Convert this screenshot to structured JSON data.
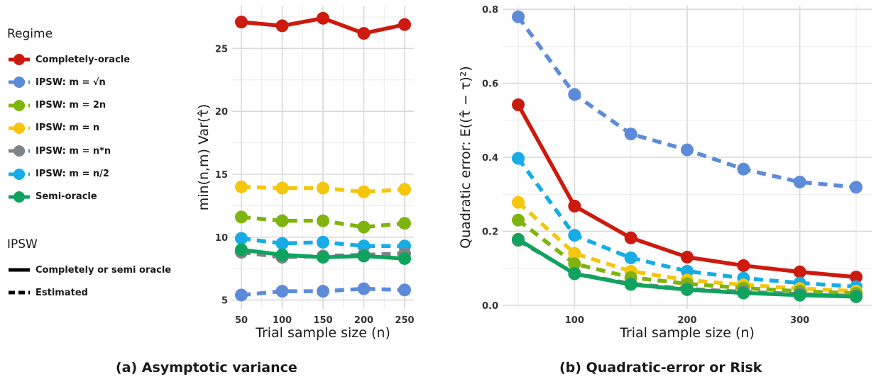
{
  "legend": {
    "regime_title": "Regime",
    "regime_items": [
      {
        "label": "Completely-oracle",
        "color": "#CC1A0E",
        "dash": "solid"
      },
      {
        "label": "IPSW: m = √n",
        "color": "#5E8BD9",
        "dash": "dashed"
      },
      {
        "label": "IPSW: m = 2n",
        "color": "#7FB40F",
        "dash": "dashed"
      },
      {
        "label": "IPSW: m = n",
        "color": "#F5C60C",
        "dash": "dashed"
      },
      {
        "label": "IPSW: m = n*n",
        "color": "#7E8389",
        "dash": "dashed"
      },
      {
        "label": "IPSW: m = n/2",
        "color": "#16ACE5",
        "dash": "dashed"
      },
      {
        "label": "Semi-oracle",
        "color": "#0FA35E",
        "dash": "solid"
      }
    ],
    "ipsw_title": "IPSW",
    "ipsw_items": [
      {
        "label": "Completely or semi oracle",
        "dash": "solid"
      },
      {
        "label": "Estimated",
        "dash": "dashed"
      }
    ]
  },
  "captions": {
    "a": "(a) Asymptotic variance",
    "b": "(b) Quadratic-error or Risk"
  },
  "chart_data": [
    {
      "type": "line",
      "title": "",
      "xlabel": "Trial sample size (n)",
      "ylabel": "min(n,m) Var(τ̂)",
      "x": [
        50,
        100,
        150,
        200,
        250
      ],
      "xticks": [
        50,
        100,
        150,
        200,
        250
      ],
      "yticks": [
        5,
        10,
        15,
        20,
        25
      ],
      "xlim": [
        50,
        250
      ],
      "ylim": [
        4.3,
        28.4
      ],
      "grid": true,
      "series": [
        {
          "name": "Completely-oracle",
          "values": [
            27.1,
            26.8,
            27.4,
            26.2,
            26.9
          ]
        },
        {
          "name": "IPSW: m = √n",
          "values": [
            5.4,
            5.7,
            5.7,
            5.9,
            5.8
          ]
        },
        {
          "name": "IPSW: m = 2n",
          "values": [
            11.6,
            11.3,
            11.3,
            10.8,
            11.1
          ]
        },
        {
          "name": "IPSW: m = n",
          "values": [
            14.0,
            13.9,
            13.9,
            13.6,
            13.8
          ]
        },
        {
          "name": "IPSW: m = n*n",
          "values": [
            8.8,
            8.4,
            8.5,
            8.6,
            8.7
          ]
        },
        {
          "name": "IPSW: m = n/2",
          "values": [
            9.9,
            9.5,
            9.6,
            9.3,
            9.3
          ]
        },
        {
          "name": "Semi-oracle",
          "values": [
            9.0,
            8.6,
            8.4,
            8.5,
            8.3
          ]
        }
      ]
    },
    {
      "type": "line",
      "title": "",
      "xlabel": "Trial sample size (n)",
      "ylabel": "Quadratic error:  E((τ̂ − τ)²)",
      "x": [
        50,
        100,
        150,
        200,
        250,
        300,
        350
      ],
      "xticks": [
        100,
        200,
        300
      ],
      "yticks": [
        0.0,
        0.2,
        0.4,
        0.6,
        0.8
      ],
      "xlim": [
        50,
        350
      ],
      "ylim": [
        -0.01,
        0.81
      ],
      "grid": true,
      "series": [
        {
          "name": "Completely-oracle",
          "values": [
            0.542,
            0.268,
            0.182,
            0.13,
            0.107,
            0.09,
            0.076
          ]
        },
        {
          "name": "IPSW: m = √n",
          "values": [
            0.78,
            0.57,
            0.463,
            0.42,
            0.368,
            0.333,
            0.319
          ]
        },
        {
          "name": "IPSW: m = 2n",
          "values": [
            0.23,
            0.112,
            0.075,
            0.058,
            0.046,
            0.038,
            0.032
          ]
        },
        {
          "name": "IPSW: m = n",
          "values": [
            0.278,
            0.14,
            0.092,
            0.068,
            0.055,
            0.045,
            0.038
          ]
        },
        {
          "name": "IPSW: m = n*n",
          "values": [
            0.175,
            0.086,
            0.058,
            0.044,
            0.036,
            0.03,
            0.025
          ]
        },
        {
          "name": "IPSW: m = n/2",
          "values": [
            0.397,
            0.189,
            0.128,
            0.092,
            0.073,
            0.06,
            0.05
          ]
        },
        {
          "name": "Semi-oracle",
          "values": [
            0.178,
            0.085,
            0.056,
            0.042,
            0.033,
            0.027,
            0.023
          ]
        }
      ]
    }
  ]
}
